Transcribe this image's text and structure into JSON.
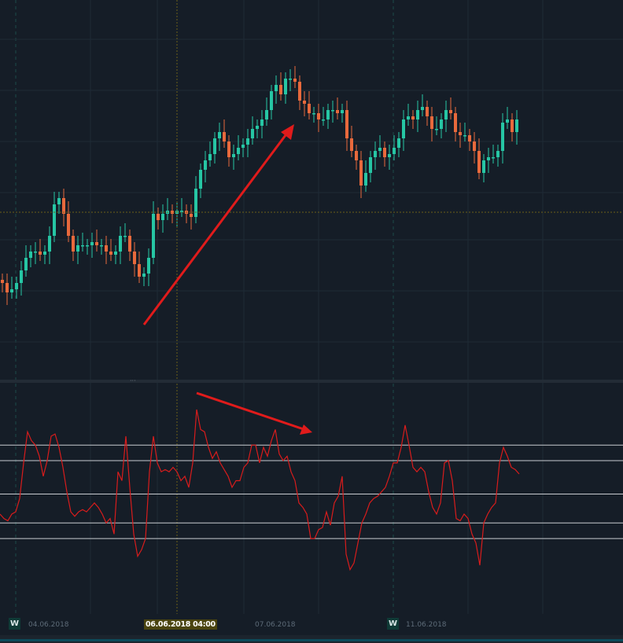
{
  "chart_data": [
    {
      "type": "candlestick",
      "grid": true,
      "x_ticks": [
        "04.06.2018",
        "07.06.2018",
        "11.06.2018"
      ],
      "week_markers": [
        "W",
        "W"
      ],
      "crosshair_label": "06.06.2018 04:00",
      "colors": {
        "up": "#26c6a4",
        "down": "#e8693c",
        "background": "#151d27",
        "grid": "#1f2a35",
        "annotation": "#e01b1b"
      },
      "closes": [
        30,
        27,
        28,
        30,
        34,
        38,
        40,
        40,
        39,
        40,
        45,
        55,
        57,
        52,
        45,
        40,
        42,
        42,
        42,
        43,
        42,
        42,
        40,
        39,
        40,
        45,
        45,
        40,
        36,
        32,
        33,
        38,
        52,
        50,
        52,
        53,
        52,
        53,
        53,
        52,
        51,
        60,
        66,
        69,
        71,
        76,
        78,
        75,
        70,
        71,
        73,
        74,
        76,
        79,
        80,
        82,
        85,
        91,
        93,
        90,
        95,
        95,
        94,
        88,
        87,
        84,
        84,
        82,
        82,
        85,
        85,
        84,
        85,
        76,
        72,
        69,
        61,
        65,
        70,
        72,
        73,
        70,
        71,
        73,
        76,
        82,
        83,
        82,
        85,
        86,
        83,
        79,
        79,
        82,
        85,
        84,
        78,
        77,
        77,
        75,
        72,
        65,
        69,
        70,
        70,
        72,
        81,
        82,
        78,
        82
      ]
    },
    {
      "type": "line",
      "series": [
        {
          "color": "#d81c1c",
          "values": [
            41,
            39,
            38,
            41,
            42,
            48,
            64,
            78,
            74,
            72,
            67,
            58,
            65,
            76,
            77,
            71,
            62,
            51,
            42,
            40,
            42,
            43,
            42,
            44,
            46,
            44,
            41,
            37,
            39,
            32,
            60,
            56,
            76,
            53,
            32,
            22,
            25,
            30,
            60,
            76,
            64,
            60,
            61,
            60,
            62,
            60,
            56,
            58,
            53,
            64,
            88,
            79,
            78,
            71,
            66,
            69,
            64,
            61,
            58,
            53,
            56,
            56,
            62,
            64,
            72,
            72,
            64,
            71,
            67,
            74,
            79,
            68,
            65,
            67,
            60,
            56,
            46,
            44,
            41,
            30,
            30,
            34,
            35,
            42,
            36,
            46,
            49,
            58,
            23,
            16,
            19,
            28,
            37,
            41,
            46,
            48,
            49,
            51,
            53,
            58,
            64,
            64,
            71,
            81,
            72,
            62,
            60,
            62,
            60,
            51,
            44,
            41,
            46,
            64,
            65,
            56,
            39,
            38,
            41,
            39,
            32,
            28,
            18,
            37,
            41,
            44,
            46,
            64,
            71,
            67,
            62,
            61,
            59
          ]
        }
      ],
      "levels": [
        72,
        65,
        50,
        37,
        30
      ],
      "level_color": "#c8ccd0"
    }
  ]
}
